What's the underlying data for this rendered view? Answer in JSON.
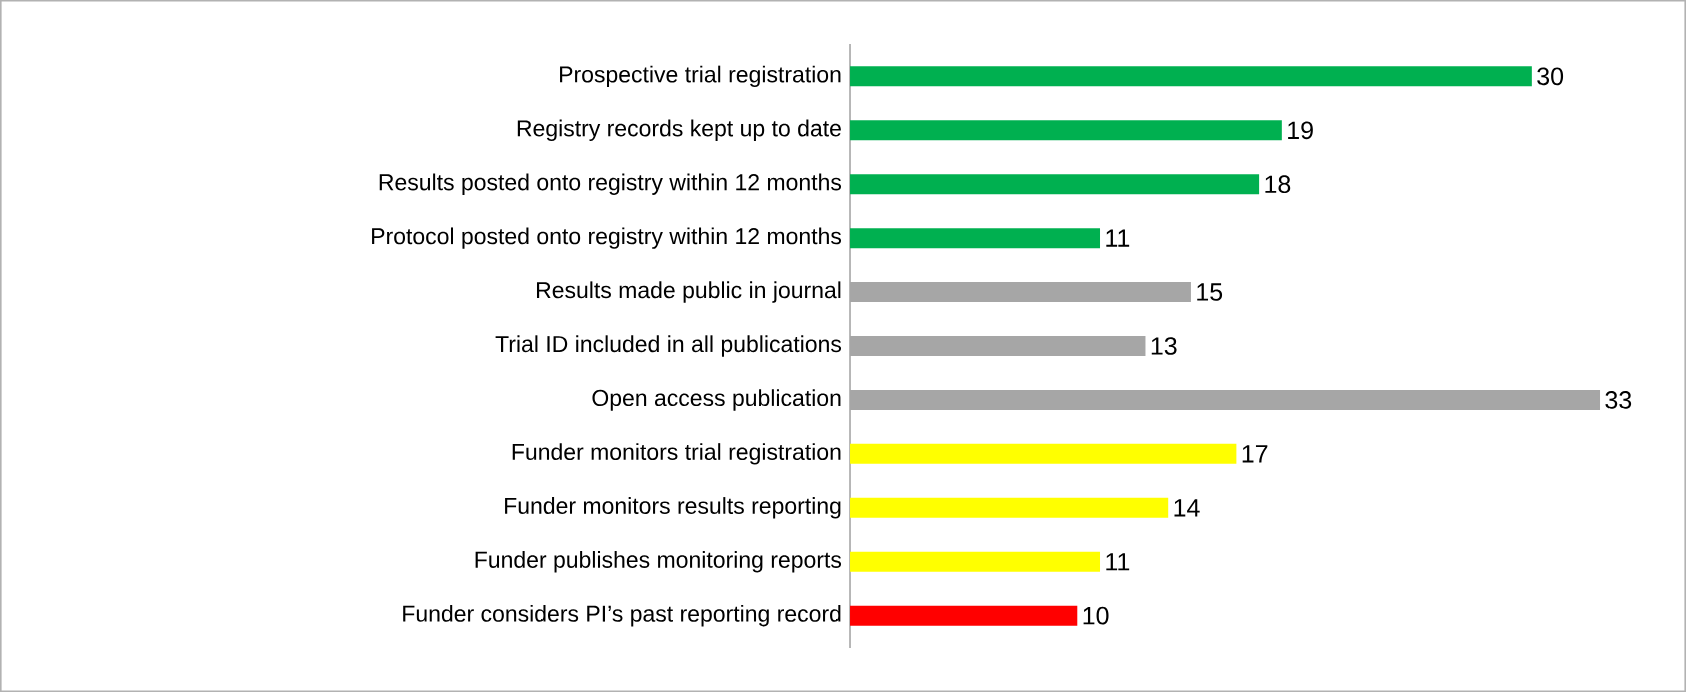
{
  "chart_data": {
    "type": "bar",
    "orientation": "horizontal",
    "categories": [
      "Prospective trial registration",
      "Registry records kept up to date",
      "Results posted onto registry within 12 months",
      "Protocol posted onto registry within 12 months",
      "Results made public in journal",
      "Trial ID included in all publications",
      "Open access publication",
      "Funder monitors trial registration",
      "Funder monitors results reporting",
      "Funder publishes monitoring reports",
      "Funder considers PI’s past reporting record"
    ],
    "values": [
      30,
      19,
      18,
      11,
      15,
      13,
      33,
      17,
      14,
      11,
      10
    ],
    "colors": [
      "#00b050",
      "#00b050",
      "#00b050",
      "#00b050",
      "#a6a6a6",
      "#a6a6a6",
      "#a6a6a6",
      "#ffff00",
      "#ffff00",
      "#ffff00",
      "#ff0000"
    ],
    "tick_labels": "y",
    "data_labels": true
  }
}
